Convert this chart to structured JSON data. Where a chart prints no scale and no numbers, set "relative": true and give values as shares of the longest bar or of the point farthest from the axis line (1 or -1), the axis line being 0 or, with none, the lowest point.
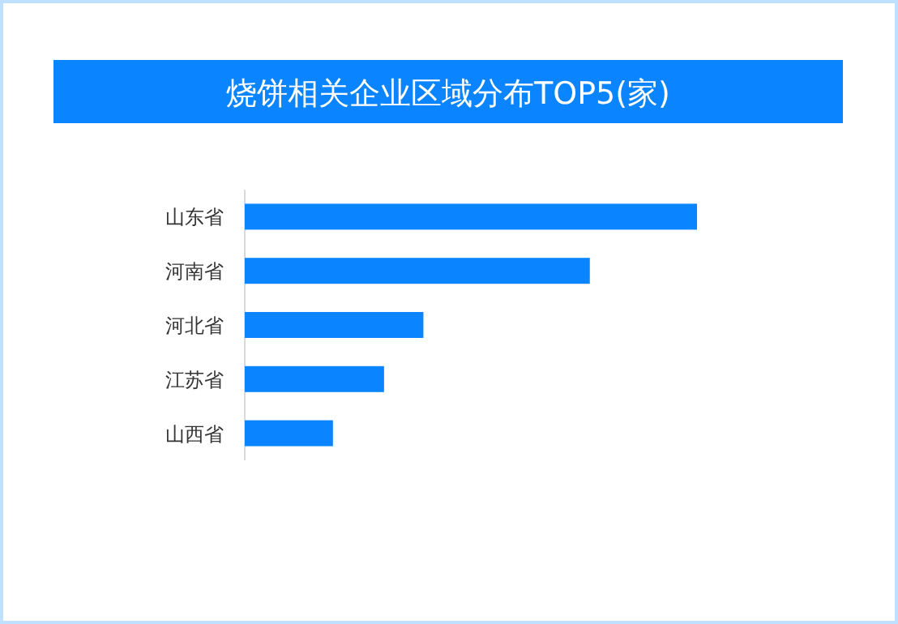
{
  "chart_data": {
    "type": "bar",
    "orientation": "horizontal",
    "relative": true,
    "title": "烧饼相关企业区域分布TOP5(家)",
    "categories": [
      "山东省",
      "河南省",
      "河北省",
      "江苏省",
      "山西省"
    ],
    "values": [
      1,
      0.763,
      0.395,
      0.308,
      0.195
    ],
    "color": "#0a84ff"
  }
}
